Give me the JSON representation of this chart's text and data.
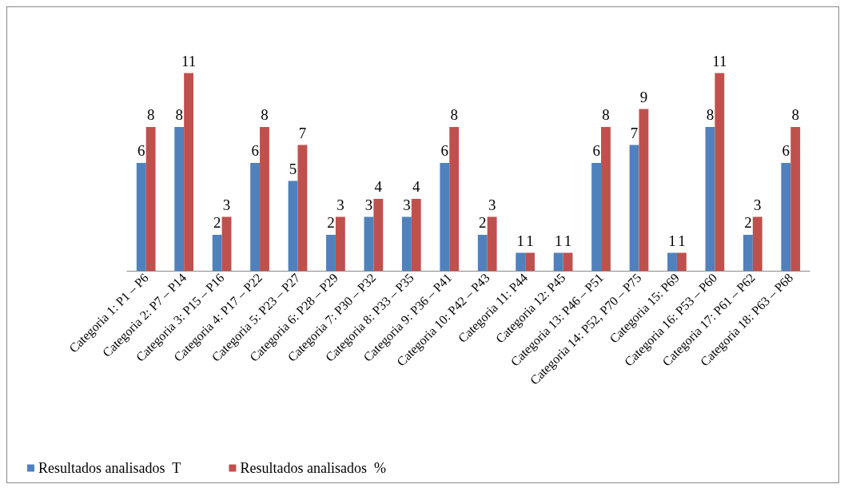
{
  "chart_data": {
    "type": "bar",
    "categories": [
      "Categoria 1: P1 – P6",
      "Categoria 2: P7 – P14",
      "Categoria 3: P15 – P16",
      "Categoria 4: P17 – P22",
      "Categoria 5: P23 – P27",
      "Categoria 6: P28 – P29",
      "Categoria 7: P30 – P32",
      "Categoria 8: P33 – P35",
      "Categoria 9: P36 – P41",
      "Categoria 10: P42 – P43",
      "Categoria 11: P44",
      "Categoria 12: P45",
      "Categoria 13: P46 – P51",
      "Categoria 14: P52, P70 – P75",
      "Categoria 15: P69",
      "Categoria 16: P53 – P60",
      "Categoria 17: P61 – P62",
      "Categoria 18: P63 – P68"
    ],
    "series": [
      {
        "name": "Resultados analisados  T",
        "color": "#4f81bd",
        "values": [
          6,
          8,
          2,
          6,
          5,
          2,
          3,
          3,
          6,
          2,
          1,
          1,
          6,
          7,
          1,
          8,
          2,
          6
        ]
      },
      {
        "name": "Resultados analisados  %",
        "color": "#c0504d",
        "values": [
          8,
          11,
          3,
          8,
          7,
          3,
          4,
          4,
          8,
          3,
          1,
          1,
          8,
          9,
          1,
          11,
          3,
          8
        ]
      }
    ],
    "data_labels": true,
    "legend": "bottom left",
    "grid": false
  }
}
